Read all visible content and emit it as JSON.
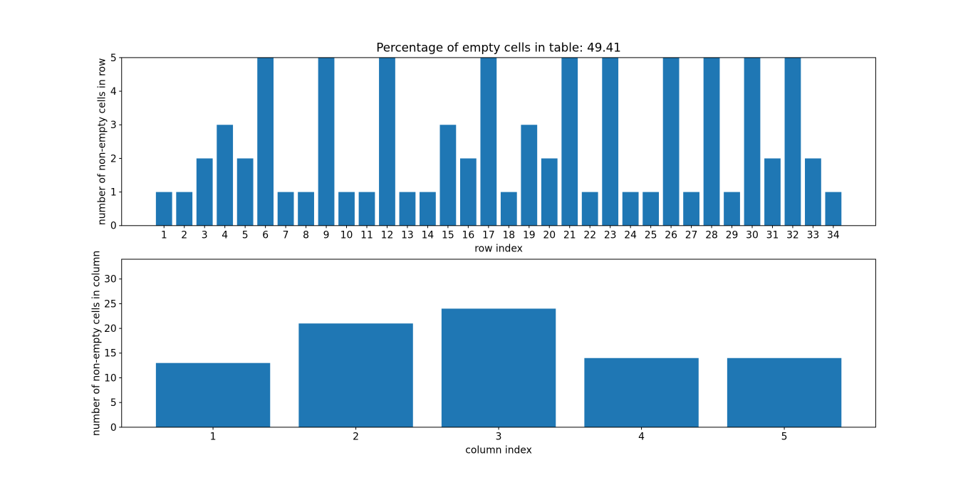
{
  "figure": {
    "background": "#ffffff",
    "frame_color": "#000000",
    "tick_color": "#000000",
    "text_color": "#000000"
  },
  "chart_data": [
    {
      "type": "bar",
      "name": "row-chart",
      "title": "Percentage of empty cells in table: 49.41",
      "xlabel": "row index",
      "ylabel": "number of non-empty cells in row",
      "categories": [
        1,
        2,
        3,
        4,
        5,
        6,
        7,
        8,
        9,
        10,
        11,
        12,
        13,
        14,
        15,
        16,
        17,
        18,
        19,
        20,
        21,
        22,
        23,
        24,
        25,
        26,
        27,
        28,
        29,
        30,
        31,
        32,
        33,
        34
      ],
      "values": [
        1,
        1,
        2,
        3,
        2,
        5,
        1,
        1,
        5,
        1,
        1,
        5,
        1,
        1,
        3,
        2,
        5,
        1,
        3,
        2,
        5,
        1,
        5,
        1,
        1,
        5,
        1,
        5,
        1,
        5,
        2,
        5,
        2,
        1
      ],
      "bar_color": "#1f77b4",
      "bar_width": 0.8,
      "xlim": [
        -1.09,
        36.09
      ],
      "ylim": [
        0,
        5
      ],
      "yticks": [
        0,
        1,
        2,
        3,
        4,
        5
      ],
      "grid": false,
      "legend": null
    },
    {
      "type": "bar",
      "name": "column-chart",
      "title": "",
      "xlabel": "column index",
      "ylabel": "number of non-empty cells in column",
      "categories": [
        1,
        2,
        3,
        4,
        5
      ],
      "values": [
        13,
        21,
        24,
        14,
        14
      ],
      "bar_color": "#1f77b4",
      "bar_width": 0.8,
      "xlim": [
        0.36,
        5.64
      ],
      "ylim": [
        0,
        34
      ],
      "yticks": [
        0,
        5,
        10,
        15,
        20,
        25,
        30
      ],
      "grid": false,
      "legend": null
    }
  ]
}
